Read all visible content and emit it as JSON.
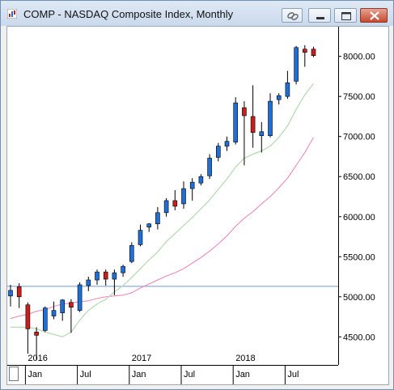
{
  "window": {
    "title": "COMP - NASDAQ Composite Index, Monthly",
    "icons": [
      "chart-app-icon",
      "link-icon",
      "minimize-icon",
      "maximize-icon",
      "close-icon"
    ]
  },
  "chart_data": {
    "type": "candlestick",
    "symbol": "COMP",
    "interval": "Monthly",
    "ylim": [
      4150,
      8350
    ],
    "y_ticks": [
      4500,
      5000,
      5500,
      6000,
      6500,
      7000,
      7500,
      8000
    ],
    "y_tick_labels": [
      "4500.00",
      "5000.00",
      "5500.00",
      "6000.00",
      "6500.00",
      "7000.00",
      "7500.00",
      "8000.00"
    ],
    "x_month_labels": [
      {
        "label": "Jan",
        "index": 2
      },
      {
        "label": "Jul",
        "index": 8
      },
      {
        "label": "Jan",
        "index": 14
      },
      {
        "label": "Jul",
        "index": 20
      },
      {
        "label": "Jan",
        "index": 26
      },
      {
        "label": "Jul",
        "index": 32
      }
    ],
    "x_year_labels": [
      {
        "label": "2016",
        "index": 2
      },
      {
        "label": "2017",
        "index": 14
      },
      {
        "label": "2018",
        "index": 26
      }
    ],
    "colors": {
      "up": "#1f6fd8",
      "down": "#c81e1e",
      "ma_short": "#b7dcb5",
      "ma_long": "#ee7fb6",
      "ref_line": "#6c97d0",
      "axis": "#000000"
    },
    "candles": [
      {
        "open": 5010,
        "high": 5150,
        "low": 4880,
        "close": 5080
      },
      {
        "open": 5125,
        "high": 5170,
        "low": 4860,
        "close": 5000
      },
      {
        "open": 4900,
        "high": 4930,
        "low": 4290,
        "close": 4600
      },
      {
        "open": 4560,
        "high": 4620,
        "low": 4210,
        "close": 4520
      },
      {
        "open": 4580,
        "high": 4880,
        "low": 4560,
        "close": 4860
      },
      {
        "open": 4760,
        "high": 4940,
        "low": 4720,
        "close": 4830
      },
      {
        "open": 4800,
        "high": 4970,
        "low": 4700,
        "close": 4960
      },
      {
        "open": 4930,
        "high": 4970,
        "low": 4550,
        "close": 4870
      },
      {
        "open": 4830,
        "high": 5180,
        "low": 4810,
        "close": 5150
      },
      {
        "open": 5140,
        "high": 5250,
        "low": 5070,
        "close": 5210
      },
      {
        "open": 5210,
        "high": 5340,
        "low": 5150,
        "close": 5310
      },
      {
        "open": 5310,
        "high": 5340,
        "low": 5140,
        "close": 5220
      },
      {
        "open": 5220,
        "high": 5340,
        "low": 5020,
        "close": 5300
      },
      {
        "open": 5300,
        "high": 5400,
        "low": 5250,
        "close": 5380
      },
      {
        "open": 5440,
        "high": 5680,
        "low": 5420,
        "close": 5640
      },
      {
        "open": 5650,
        "high": 5900,
        "low": 5630,
        "close": 5830
      },
      {
        "open": 5870,
        "high": 5920,
        "low": 5810,
        "close": 5910
      },
      {
        "open": 5910,
        "high": 6120,
        "low": 5840,
        "close": 6050
      },
      {
        "open": 6050,
        "high": 6230,
        "low": 6000,
        "close": 6200
      },
      {
        "open": 6200,
        "high": 6330,
        "low": 6080,
        "close": 6130
      },
      {
        "open": 6160,
        "high": 6440,
        "low": 6100,
        "close": 6350
      },
      {
        "open": 6350,
        "high": 6480,
        "low": 6200,
        "close": 6430
      },
      {
        "open": 6420,
        "high": 6530,
        "low": 6390,
        "close": 6500
      },
      {
        "open": 6510,
        "high": 6780,
        "low": 6470,
        "close": 6730
      },
      {
        "open": 6740,
        "high": 6920,
        "low": 6690,
        "close": 6880
      },
      {
        "open": 6880,
        "high": 7000,
        "low": 6820,
        "close": 6940
      },
      {
        "open": 6930,
        "high": 7490,
        "low": 6900,
        "close": 7420
      },
      {
        "open": 7360,
        "high": 7440,
        "low": 6640,
        "close": 7260
      },
      {
        "open": 7250,
        "high": 7640,
        "low": 6860,
        "close": 7050
      },
      {
        "open": 7010,
        "high": 7180,
        "low": 6800,
        "close": 7060
      },
      {
        "open": 7010,
        "high": 7540,
        "low": 6990,
        "close": 7440
      },
      {
        "open": 7460,
        "high": 7540,
        "low": 7400,
        "close": 7510
      },
      {
        "open": 7500,
        "high": 7820,
        "low": 7470,
        "close": 7670
      },
      {
        "open": 7690,
        "high": 8130,
        "low": 7650,
        "close": 8110
      },
      {
        "open": 8090,
        "high": 8140,
        "low": 7870,
        "close": 8050
      },
      {
        "open": 8090,
        "high": 8120,
        "low": 7990,
        "close": 8010
      }
    ],
    "ma_short": [
      4620,
      4620,
      4620,
      4600,
      4560,
      4530,
      4500,
      4560,
      4710,
      4830,
      4910,
      4970,
      5060,
      5140,
      5240,
      5350,
      5460,
      5560,
      5690,
      5790,
      5890,
      5990,
      6100,
      6210,
      6340,
      6470,
      6620,
      6730,
      6780,
      6820,
      6880,
      6990,
      7130,
      7340,
      7520,
      7660
    ],
    "ma_long": [
      4730,
      4760,
      4780,
      4820,
      4840,
      4880,
      4910,
      4920,
      4940,
      4950,
      4980,
      5000,
      5010,
      5020,
      5050,
      5110,
      5160,
      5210,
      5260,
      5300,
      5350,
      5420,
      5490,
      5570,
      5660,
      5760,
      5880,
      5980,
      6060,
      6160,
      6250,
      6360,
      6480,
      6640,
      6800,
      6990
    ],
    "ref_level": 5130
  }
}
